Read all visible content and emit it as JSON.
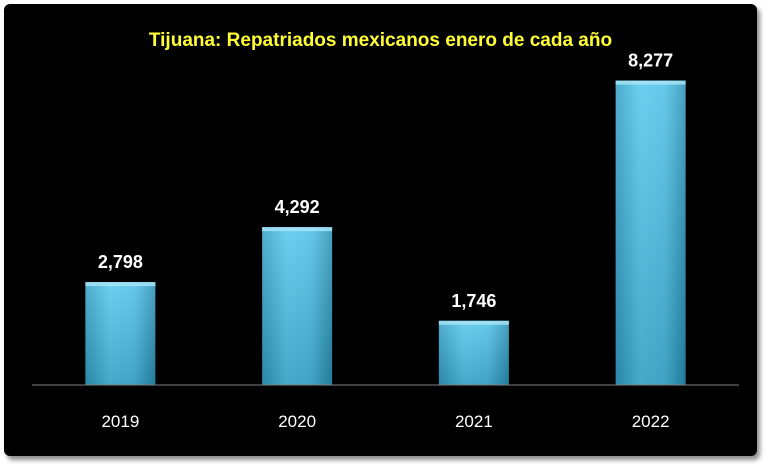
{
  "chart_data": {
    "type": "bar",
    "title": "Tijuana: Repatriados mexicanos enero de cada año",
    "xlabel": "",
    "ylabel": "",
    "categories": [
      "2019",
      "2020",
      "2021",
      "2022"
    ],
    "values": [
      2798,
      4292,
      1746,
      8277
    ],
    "value_labels": [
      "2,798",
      "4,292",
      "1,746",
      "8,277"
    ],
    "ylim": [
      0,
      9000
    ],
    "grid": false,
    "legend": "none",
    "colors": {
      "background": "#000000",
      "title": "#ffff33",
      "bar_light": "#5fcdf0",
      "bar_dark": "#2aa8d0",
      "text": "#ffffff",
      "axis": "#7f7f7f"
    }
  }
}
